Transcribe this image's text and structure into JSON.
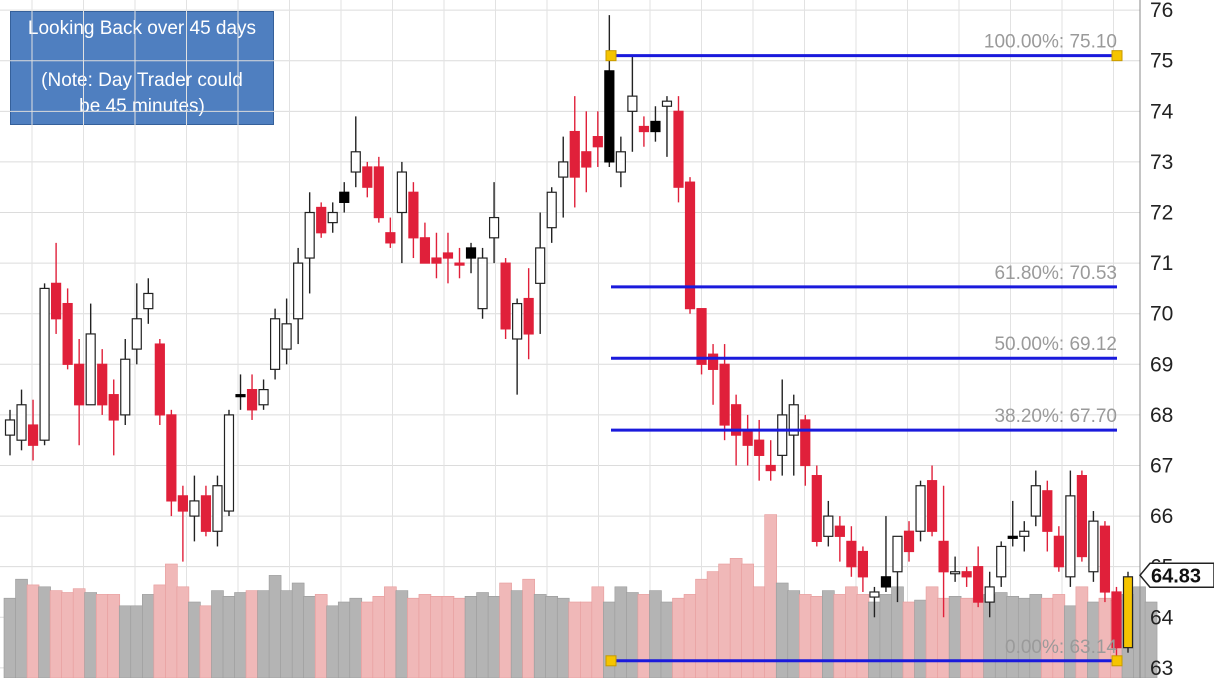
{
  "annotation": {
    "line1": "Looking Back over 45 days",
    "line2": "(Note: Day Trader could",
    "line3": "be 45 minutes)"
  },
  "colors": {
    "up": "#ffffff",
    "down": "#e0203a",
    "black": "#000000",
    "fib_line": "#1a1adc",
    "anchor": "#f5c400",
    "vol_up": "#b4b4b4",
    "vol_down": "#f0b8b8"
  },
  "chart_data": {
    "type": "candlestick",
    "title": "",
    "ylim": [
      62.8,
      76.2
    ],
    "y_ticks": [
      "63",
      "64",
      "65",
      "66",
      "67",
      "68",
      "69",
      "70",
      "71",
      "72",
      "73",
      "74",
      "75",
      "76"
    ],
    "last_price_label": "64.83",
    "grid": true,
    "fibonacci": [
      {
        "label": "100.00%: 75.10",
        "value": 75.1
      },
      {
        "label": "61.80%: 70.53",
        "value": 70.53
      },
      {
        "label": "50.00%: 69.12",
        "value": 69.12
      },
      {
        "label": "38.20%: 67.70",
        "value": 67.7
      },
      {
        "label": "0.00%: 63.14",
        "value": 63.14
      }
    ],
    "candles": [
      {
        "o": 67.6,
        "h": 68.1,
        "l": 67.2,
        "c": 67.9,
        "k": "up"
      },
      {
        "o": 67.5,
        "h": 68.5,
        "l": 67.3,
        "c": 68.2,
        "k": "up"
      },
      {
        "o": 67.8,
        "h": 68.3,
        "l": 67.1,
        "c": 67.4,
        "k": "dn"
      },
      {
        "o": 67.5,
        "h": 70.6,
        "l": 67.4,
        "c": 70.5,
        "k": "up"
      },
      {
        "o": 70.6,
        "h": 71.4,
        "l": 69.6,
        "c": 69.9,
        "k": "dn"
      },
      {
        "o": 70.2,
        "h": 70.5,
        "l": 68.9,
        "c": 69.0,
        "k": "dn"
      },
      {
        "o": 69.0,
        "h": 69.5,
        "l": 67.4,
        "c": 68.2,
        "k": "dn"
      },
      {
        "o": 68.2,
        "h": 70.2,
        "l": 68.2,
        "c": 69.6,
        "k": "up"
      },
      {
        "o": 69.0,
        "h": 69.3,
        "l": 68.0,
        "c": 68.2,
        "k": "dn"
      },
      {
        "o": 68.4,
        "h": 68.7,
        "l": 67.2,
        "c": 67.9,
        "k": "dn"
      },
      {
        "o": 68.0,
        "h": 69.5,
        "l": 67.8,
        "c": 69.1,
        "k": "up"
      },
      {
        "o": 69.3,
        "h": 70.6,
        "l": 69.0,
        "c": 69.9,
        "k": "up"
      },
      {
        "o": 70.1,
        "h": 70.7,
        "l": 69.8,
        "c": 70.4,
        "k": "up"
      },
      {
        "o": 69.4,
        "h": 69.5,
        "l": 67.8,
        "c": 68.0,
        "k": "dn"
      },
      {
        "o": 68.0,
        "h": 68.1,
        "l": 66.0,
        "c": 66.3,
        "k": "dn"
      },
      {
        "o": 66.4,
        "h": 66.6,
        "l": 65.1,
        "c": 66.1,
        "k": "dn"
      },
      {
        "o": 66.0,
        "h": 66.8,
        "l": 65.5,
        "c": 66.3,
        "k": "up"
      },
      {
        "o": 66.4,
        "h": 66.6,
        "l": 65.6,
        "c": 65.7,
        "k": "dn"
      },
      {
        "o": 65.7,
        "h": 66.8,
        "l": 65.4,
        "c": 66.6,
        "k": "up"
      },
      {
        "o": 66.1,
        "h": 68.1,
        "l": 66.0,
        "c": 68.0,
        "k": "up"
      },
      {
        "o": 68.4,
        "h": 68.8,
        "l": 68.1,
        "c": 68.4,
        "k": "bk"
      },
      {
        "o": 68.5,
        "h": 68.8,
        "l": 67.9,
        "c": 68.1,
        "k": "dn"
      },
      {
        "o": 68.2,
        "h": 68.7,
        "l": 68.1,
        "c": 68.5,
        "k": "up"
      },
      {
        "o": 68.9,
        "h": 70.1,
        "l": 68.7,
        "c": 69.9,
        "k": "up"
      },
      {
        "o": 69.3,
        "h": 70.3,
        "l": 69.0,
        "c": 69.8,
        "k": "up"
      },
      {
        "o": 69.9,
        "h": 71.3,
        "l": 69.4,
        "c": 71.0,
        "k": "up"
      },
      {
        "o": 71.1,
        "h": 72.4,
        "l": 70.4,
        "c": 72.0,
        "k": "up"
      },
      {
        "o": 72.1,
        "h": 72.2,
        "l": 71.5,
        "c": 71.6,
        "k": "dn"
      },
      {
        "o": 71.8,
        "h": 72.2,
        "l": 71.6,
        "c": 72.0,
        "k": "up"
      },
      {
        "o": 72.2,
        "h": 72.6,
        "l": 72.0,
        "c": 72.4,
        "k": "bk"
      },
      {
        "o": 72.8,
        "h": 73.9,
        "l": 72.5,
        "c": 73.2,
        "k": "up"
      },
      {
        "o": 72.9,
        "h": 73.0,
        "l": 72.3,
        "c": 72.5,
        "k": "dn"
      },
      {
        "o": 72.9,
        "h": 73.1,
        "l": 71.8,
        "c": 71.9,
        "k": "dn"
      },
      {
        "o": 71.4,
        "h": 71.9,
        "l": 71.3,
        "c": 71.6,
        "k": "dn"
      },
      {
        "o": 72.0,
        "h": 73.0,
        "l": 71.0,
        "c": 72.8,
        "k": "up"
      },
      {
        "o": 72.4,
        "h": 72.6,
        "l": 71.1,
        "c": 71.5,
        "k": "dn"
      },
      {
        "o": 71.5,
        "h": 71.8,
        "l": 71.0,
        "c": 71.0,
        "k": "dn"
      },
      {
        "o": 71.1,
        "h": 71.6,
        "l": 70.7,
        "c": 71.0,
        "k": "dn"
      },
      {
        "o": 71.2,
        "h": 71.6,
        "l": 70.6,
        "c": 71.1,
        "k": "dn"
      },
      {
        "o": 71.0,
        "h": 71.3,
        "l": 70.7,
        "c": 71.0,
        "k": "dn"
      },
      {
        "o": 71.1,
        "h": 71.4,
        "l": 70.8,
        "c": 71.3,
        "k": "bk"
      },
      {
        "o": 70.1,
        "h": 71.3,
        "l": 69.9,
        "c": 71.1,
        "k": "up"
      },
      {
        "o": 71.5,
        "h": 72.6,
        "l": 71.0,
        "c": 71.9,
        "k": "up"
      },
      {
        "o": 71.0,
        "h": 71.1,
        "l": 69.5,
        "c": 69.7,
        "k": "dn"
      },
      {
        "o": 69.5,
        "h": 70.3,
        "l": 68.4,
        "c": 70.2,
        "k": "up"
      },
      {
        "o": 70.3,
        "h": 70.9,
        "l": 69.1,
        "c": 69.6,
        "k": "dn"
      },
      {
        "o": 70.6,
        "h": 72.0,
        "l": 69.6,
        "c": 71.3,
        "k": "up"
      },
      {
        "o": 71.7,
        "h": 72.5,
        "l": 71.4,
        "c": 72.4,
        "k": "up"
      },
      {
        "o": 72.7,
        "h": 73.5,
        "l": 71.9,
        "c": 73.0,
        "k": "up"
      },
      {
        "o": 73.6,
        "h": 74.3,
        "l": 72.1,
        "c": 72.7,
        "k": "dn"
      },
      {
        "o": 73.2,
        "h": 74.0,
        "l": 72.4,
        "c": 72.9,
        "k": "dn"
      },
      {
        "o": 73.5,
        "h": 74.0,
        "l": 72.9,
        "c": 73.3,
        "k": "dn"
      },
      {
        "o": 73.0,
        "h": 75.9,
        "l": 72.9,
        "c": 74.8,
        "k": "bk"
      },
      {
        "o": 72.8,
        "h": 73.5,
        "l": 72.5,
        "c": 73.2,
        "k": "up"
      },
      {
        "o": 74.0,
        "h": 75.1,
        "l": 73.2,
        "c": 74.3,
        "k": "up"
      },
      {
        "o": 73.6,
        "h": 73.9,
        "l": 73.3,
        "c": 73.7,
        "k": "dn"
      },
      {
        "o": 73.6,
        "h": 74.1,
        "l": 73.4,
        "c": 73.8,
        "k": "bk"
      },
      {
        "o": 74.1,
        "h": 74.3,
        "l": 73.1,
        "c": 74.2,
        "k": "up"
      },
      {
        "o": 74.0,
        "h": 74.3,
        "l": 72.2,
        "c": 72.5,
        "k": "dn"
      },
      {
        "o": 72.6,
        "h": 72.7,
        "l": 70.0,
        "c": 70.1,
        "k": "dn"
      },
      {
        "o": 70.1,
        "h": 70.1,
        "l": 68.8,
        "c": 69.0,
        "k": "dn"
      },
      {
        "o": 69.2,
        "h": 69.4,
        "l": 68.2,
        "c": 68.9,
        "k": "dn"
      },
      {
        "o": 69.0,
        "h": 69.4,
        "l": 67.5,
        "c": 67.8,
        "k": "dn"
      },
      {
        "o": 68.2,
        "h": 68.4,
        "l": 67.0,
        "c": 67.6,
        "k": "dn"
      },
      {
        "o": 67.7,
        "h": 68.0,
        "l": 67.0,
        "c": 67.4,
        "k": "dn"
      },
      {
        "o": 67.5,
        "h": 67.9,
        "l": 66.7,
        "c": 67.2,
        "k": "dn"
      },
      {
        "o": 67.0,
        "h": 67.5,
        "l": 66.7,
        "c": 66.9,
        "k": "dn"
      },
      {
        "o": 67.2,
        "h": 68.7,
        "l": 66.8,
        "c": 68.0,
        "k": "up"
      },
      {
        "o": 67.6,
        "h": 68.4,
        "l": 66.8,
        "c": 68.2,
        "k": "up"
      },
      {
        "o": 67.9,
        "h": 68.0,
        "l": 66.6,
        "c": 67.0,
        "k": "dn"
      },
      {
        "o": 66.8,
        "h": 67.0,
        "l": 65.4,
        "c": 65.5,
        "k": "dn"
      },
      {
        "o": 65.6,
        "h": 66.3,
        "l": 65.4,
        "c": 66.0,
        "k": "up"
      },
      {
        "o": 65.8,
        "h": 66.0,
        "l": 65.1,
        "c": 65.6,
        "k": "dn"
      },
      {
        "o": 65.5,
        "h": 65.8,
        "l": 64.8,
        "c": 65.0,
        "k": "dn"
      },
      {
        "o": 65.3,
        "h": 65.4,
        "l": 64.5,
        "c": 64.8,
        "k": "dn"
      },
      {
        "o": 64.4,
        "h": 64.6,
        "l": 64.0,
        "c": 64.5,
        "k": "up"
      },
      {
        "o": 64.6,
        "h": 66.0,
        "l": 64.5,
        "c": 64.8,
        "k": "bk"
      },
      {
        "o": 64.9,
        "h": 65.6,
        "l": 64.3,
        "c": 65.6,
        "k": "up"
      },
      {
        "o": 65.7,
        "h": 65.9,
        "l": 65.1,
        "c": 65.3,
        "k": "dn"
      },
      {
        "o": 65.7,
        "h": 66.7,
        "l": 65.5,
        "c": 66.6,
        "k": "up"
      },
      {
        "o": 66.7,
        "h": 67.0,
        "l": 65.6,
        "c": 65.7,
        "k": "dn"
      },
      {
        "o": 65.5,
        "h": 66.6,
        "l": 64.0,
        "c": 64.9,
        "k": "dn"
      },
      {
        "o": 64.9,
        "h": 65.2,
        "l": 64.7,
        "c": 64.9,
        "k": "up"
      },
      {
        "o": 64.9,
        "h": 65.0,
        "l": 64.6,
        "c": 64.8,
        "k": "dn"
      },
      {
        "o": 65.0,
        "h": 65.4,
        "l": 64.2,
        "c": 64.3,
        "k": "dn"
      },
      {
        "o": 64.3,
        "h": 64.9,
        "l": 64.0,
        "c": 64.6,
        "k": "up"
      },
      {
        "o": 64.8,
        "h": 65.5,
        "l": 64.6,
        "c": 65.4,
        "k": "up"
      },
      {
        "o": 65.6,
        "h": 66.3,
        "l": 65.4,
        "c": 65.6,
        "k": "bk"
      },
      {
        "o": 65.6,
        "h": 65.9,
        "l": 65.3,
        "c": 65.7,
        "k": "up"
      },
      {
        "o": 66.0,
        "h": 66.9,
        "l": 65.8,
        "c": 66.6,
        "k": "up"
      },
      {
        "o": 66.5,
        "h": 66.7,
        "l": 65.3,
        "c": 65.7,
        "k": "dn"
      },
      {
        "o": 65.6,
        "h": 65.8,
        "l": 64.9,
        "c": 65.0,
        "k": "dn"
      },
      {
        "o": 64.8,
        "h": 66.9,
        "l": 64.6,
        "c": 66.4,
        "k": "up"
      },
      {
        "o": 66.8,
        "h": 66.9,
        "l": 65.1,
        "c": 65.2,
        "k": "dn"
      },
      {
        "o": 65.9,
        "h": 66.1,
        "l": 64.7,
        "c": 64.9,
        "k": "up"
      },
      {
        "o": 65.8,
        "h": 65.9,
        "l": 64.3,
        "c": 64.5,
        "k": "dn"
      },
      {
        "o": 64.5,
        "h": 64.6,
        "l": 63.1,
        "c": 63.4,
        "k": "dn"
      },
      {
        "o": 63.4,
        "h": 64.9,
        "l": 63.3,
        "c": 64.8,
        "k": "last"
      }
    ],
    "volume": [
      42,
      52,
      49,
      48,
      46,
      45,
      47,
      45,
      44,
      44,
      38,
      38,
      44,
      49,
      60,
      48,
      40,
      38,
      46,
      43,
      45,
      46,
      46,
      54,
      46,
      50,
      43,
      44,
      38,
      40,
      42,
      40,
      43,
      48,
      46,
      42,
      44,
      43,
      43,
      42,
      43,
      45,
      43,
      50,
      46,
      52,
      44,
      43,
      42,
      40,
      40,
      48,
      40,
      48,
      45,
      44,
      46,
      40,
      42,
      44,
      52,
      56,
      60,
      63,
      60,
      48,
      86,
      50,
      46,
      44,
      43,
      46,
      44,
      48,
      44,
      40,
      44,
      48,
      40,
      41,
      48,
      42,
      43,
      42,
      42,
      44,
      45,
      43,
      42,
      44,
      42,
      44,
      38,
      48,
      40,
      42,
      41,
      44,
      48,
      40
    ]
  }
}
